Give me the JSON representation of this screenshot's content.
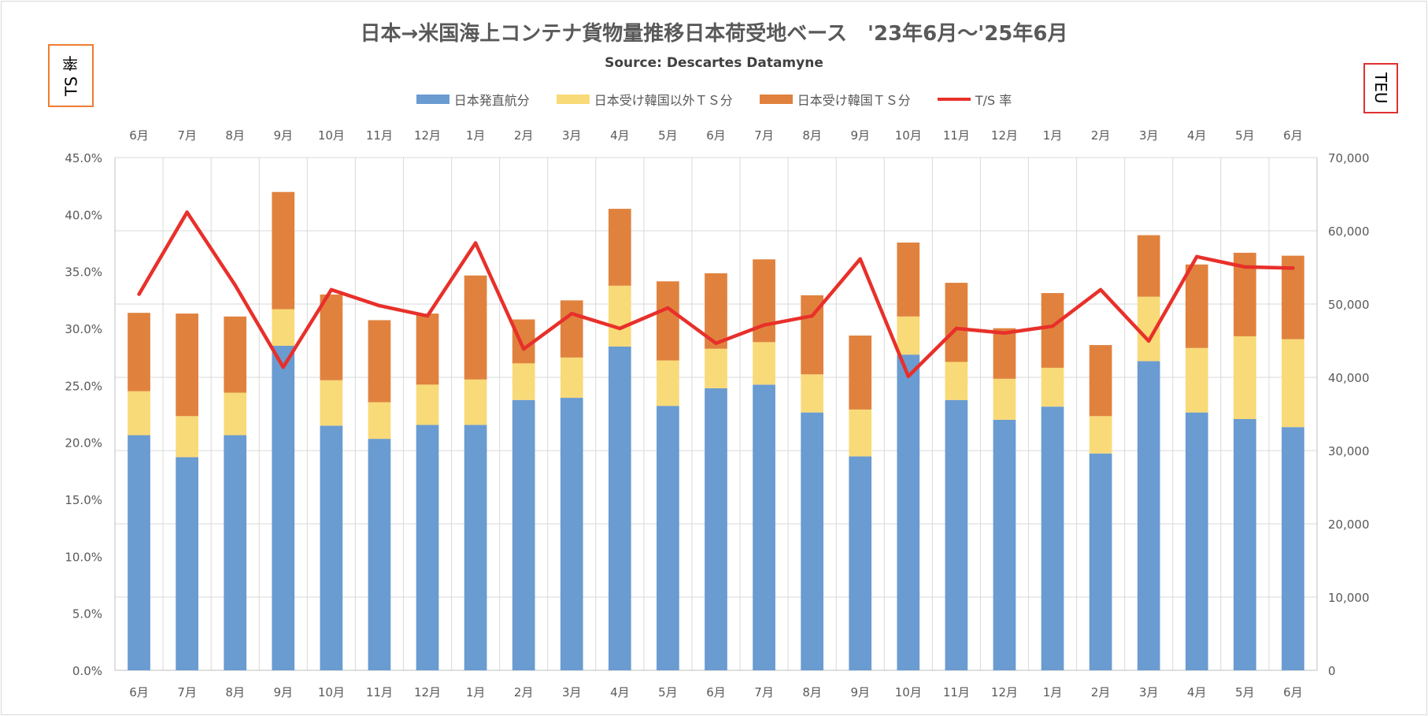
{
  "chart_data": {
    "type": "bar",
    "title": "日本→米国海上コンテナ貨物量推移日本荷受地ベース　'23年6月～'25年6月",
    "subtitle": "Source: Descartes Datamyne",
    "y_left_label": "TS 率",
    "y_right_label": "TEU",
    "categories": [
      "6月",
      "7月",
      "8月",
      "9月",
      "10月",
      "11月",
      "12月",
      "1月",
      "2月",
      "3月",
      "4月",
      "5月",
      "6月",
      "7月",
      "8月",
      "9月",
      "10月",
      "11月",
      "12月",
      "1月",
      "2月",
      "3月",
      "4月",
      "5月",
      "6月"
    ],
    "series": [
      {
        "name": "日本発直航分",
        "color": "#6a9bd1",
        "axis": "right",
        "stacked": true,
        "values": [
          32100,
          29100,
          32100,
          44300,
          33400,
          31600,
          33500,
          33500,
          36900,
          37200,
          44200,
          36100,
          38500,
          39000,
          35200,
          29200,
          43100,
          36900,
          34200,
          36000,
          29600,
          42200,
          35200,
          34300,
          33200
        ]
      },
      {
        "name": "日本受け韓国以外ＴＳ分",
        "color": "#f9da78",
        "axis": "right",
        "stacked": true,
        "values": [
          6000,
          5600,
          5800,
          5000,
          6200,
          5000,
          5500,
          6200,
          5000,
          5500,
          8300,
          6200,
          5400,
          5800,
          5200,
          6400,
          5200,
          5200,
          5600,
          5300,
          5100,
          8800,
          8800,
          11300,
          12000
        ]
      },
      {
        "name": "日本受け韓国ＴＳ分",
        "color": "#e0823e",
        "axis": "right",
        "stacked": true,
        "values": [
          10700,
          14000,
          10400,
          16000,
          11700,
          11200,
          9700,
          14200,
          6000,
          7800,
          10500,
          10800,
          10300,
          11300,
          10800,
          10100,
          10100,
          10800,
          6900,
          10200,
          9700,
          8400,
          11400,
          11400,
          11400
        ]
      },
      {
        "name": "T/S 率",
        "color": "#e8302a",
        "axis": "left",
        "type": "line",
        "values": [
          33.0,
          40.2,
          33.8,
          26.6,
          33.4,
          32.0,
          31.1,
          37.5,
          28.2,
          31.3,
          30.0,
          31.8,
          28.7,
          30.3,
          31.1,
          36.1,
          25.8,
          30.0,
          29.6,
          30.2,
          33.4,
          28.9,
          36.3,
          35.4,
          35.3
        ]
      }
    ],
    "y_left_ticks": [
      "0.0%",
      "5.0%",
      "10.0%",
      "15.0%",
      "20.0%",
      "25.0%",
      "30.0%",
      "35.0%",
      "40.0%",
      "45.0%"
    ],
    "y_right_ticks": [
      "0",
      "10,000",
      "20,000",
      "30,000",
      "40,000",
      "50,000",
      "60,000",
      "70,000"
    ],
    "ylim_left": [
      0,
      45
    ],
    "ylim_right": [
      0,
      70000
    ],
    "grid": true,
    "legend_position": "top"
  }
}
